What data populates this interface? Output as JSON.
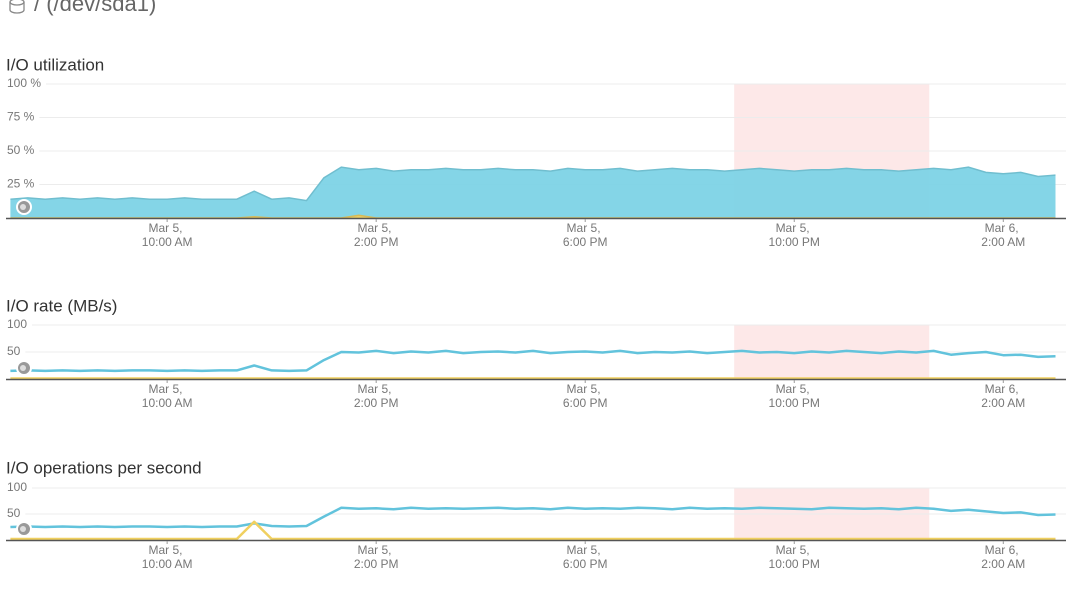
{
  "header": "/ (/dev/sda1)",
  "chart_data": [
    {
      "type": "area",
      "title": "I/O utilization",
      "x": [
        "Mar 5, 7:00 AM",
        "Mar 5, 7:20 AM",
        "Mar 5, 7:40 AM",
        "Mar 5, 8:00 AM",
        "Mar 5, 8:20 AM",
        "Mar 5, 8:40 AM",
        "Mar 5, 9:00 AM",
        "Mar 5, 9:20 AM",
        "Mar 5, 9:40 AM",
        "Mar 5, 10:00 AM",
        "Mar 5, 10:20 AM",
        "Mar 5, 10:40 AM",
        "Mar 5, 11:00 AM",
        "Mar 5, 11:20 AM",
        "Mar 5, 11:40 AM",
        "Mar 5, 12:00 PM",
        "Mar 5, 12:20 PM",
        "Mar 5, 12:40 PM",
        "Mar 5, 1:00 PM",
        "Mar 5, 1:20 PM",
        "Mar 5, 1:40 PM",
        "Mar 5, 2:00 PM",
        "Mar 5, 2:20 PM",
        "Mar 5, 2:40 PM",
        "Mar 5, 3:00 PM",
        "Mar 5, 3:20 PM",
        "Mar 5, 3:40 PM",
        "Mar 5, 4:00 PM",
        "Mar 5, 4:20 PM",
        "Mar 5, 4:40 PM",
        "Mar 5, 5:00 PM",
        "Mar 5, 5:20 PM",
        "Mar 5, 5:40 PM",
        "Mar 5, 6:00 PM",
        "Mar 5, 6:20 PM",
        "Mar 5, 6:40 PM",
        "Mar 5, 7:00 PM",
        "Mar 5, 7:20 PM",
        "Mar 5, 7:40 PM",
        "Mar 5, 8:00 PM",
        "Mar 5, 8:20 PM",
        "Mar 5, 8:40 PM",
        "Mar 5, 9:00 PM",
        "Mar 5, 9:20 PM",
        "Mar 5, 9:40 PM",
        "Mar 5, 10:00 PM",
        "Mar 5, 10:20 PM",
        "Mar 5, 10:40 PM",
        "Mar 5, 11:00 PM",
        "Mar 5, 11:20 PM",
        "Mar 5, 11:40 PM",
        "Mar 6, 12:00 AM",
        "Mar 6, 12:20 AM",
        "Mar 6, 12:40 AM",
        "Mar 6, 1:00 AM",
        "Mar 6, 1:20 AM",
        "Mar 6, 1:40 AM",
        "Mar 6, 2:00 AM",
        "Mar 6, 2:20 AM",
        "Mar 6, 2:40 AM",
        "Mar 6, 3:00 AM"
      ],
      "xlim": [
        "Mar 5, 6:55 AM",
        "Mar 6, 3:12 AM"
      ],
      "xticks": [
        "Mar 5, 10:00 AM",
        "Mar 5, 2:00 PM",
        "Mar 5, 6:00 PM",
        "Mar 5, 10:00 PM",
        "Mar 6, 2:00 AM"
      ],
      "ylim": [
        0,
        100
      ],
      "yticks": [
        {
          "value": 25,
          "label": "25 %"
        },
        {
          "value": 50,
          "label": "50 %"
        },
        {
          "value": 75,
          "label": "75 %"
        },
        {
          "value": 100,
          "label": "100 %"
        }
      ],
      "grid": true,
      "highlight": [
        "Mar 5, 8:51 PM",
        "Mar 6, 12:35 AM"
      ],
      "series": [
        {
          "color": "#7dd3e6",
          "values": [
            14,
            15,
            14,
            15,
            14,
            15,
            14,
            15,
            14,
            14,
            15,
            14,
            14,
            14,
            20,
            14,
            15,
            13,
            30,
            38,
            36,
            37,
            35,
            36,
            36,
            37,
            36,
            36,
            37,
            36,
            36,
            35,
            37,
            36,
            36,
            37,
            35,
            36,
            37,
            36,
            36,
            35,
            36,
            37,
            36,
            35,
            36,
            36,
            37,
            36,
            36,
            35,
            36,
            37,
            36,
            38,
            34,
            33,
            34,
            31,
            32
          ]
        },
        {
          "color": "#f0d060",
          "values": [
            0,
            0,
            0,
            0,
            0,
            0,
            0,
            0,
            0,
            0,
            0,
            0,
            0,
            0,
            1,
            0,
            0,
            0,
            0,
            0,
            2,
            0,
            0,
            0,
            0,
            0,
            0,
            0,
            0,
            0,
            0,
            0,
            0,
            0,
            0,
            0,
            0,
            0,
            0,
            0,
            0,
            0,
            0,
            0,
            0,
            0,
            0,
            0,
            0,
            0,
            0,
            0,
            0,
            0,
            0,
            0,
            0,
            0,
            0,
            0,
            0
          ]
        }
      ]
    },
    {
      "type": "line",
      "title": "I/O rate (MB/s)",
      "x": [
        "Mar 5, 7:00 AM",
        "Mar 5, 7:20 AM",
        "Mar 5, 7:40 AM",
        "Mar 5, 8:00 AM",
        "Mar 5, 8:20 AM",
        "Mar 5, 8:40 AM",
        "Mar 5, 9:00 AM",
        "Mar 5, 9:20 AM",
        "Mar 5, 9:40 AM",
        "Mar 5, 10:00 AM",
        "Mar 5, 10:20 AM",
        "Mar 5, 10:40 AM",
        "Mar 5, 11:00 AM",
        "Mar 5, 11:20 AM",
        "Mar 5, 11:40 AM",
        "Mar 5, 12:00 PM",
        "Mar 5, 12:20 PM",
        "Mar 5, 12:40 PM",
        "Mar 5, 1:00 PM",
        "Mar 5, 1:20 PM",
        "Mar 5, 1:40 PM",
        "Mar 5, 2:00 PM",
        "Mar 5, 2:20 PM",
        "Mar 5, 2:40 PM",
        "Mar 5, 3:00 PM",
        "Mar 5, 3:20 PM",
        "Mar 5, 3:40 PM",
        "Mar 5, 4:00 PM",
        "Mar 5, 4:20 PM",
        "Mar 5, 4:40 PM",
        "Mar 5, 5:00 PM",
        "Mar 5, 5:20 PM",
        "Mar 5, 5:40 PM",
        "Mar 5, 6:00 PM",
        "Mar 5, 6:20 PM",
        "Mar 5, 6:40 PM",
        "Mar 5, 7:00 PM",
        "Mar 5, 7:20 PM",
        "Mar 5, 7:40 PM",
        "Mar 5, 8:00 PM",
        "Mar 5, 8:20 PM",
        "Mar 5, 8:40 PM",
        "Mar 5, 9:00 PM",
        "Mar 5, 9:20 PM",
        "Mar 5, 9:40 PM",
        "Mar 5, 10:00 PM",
        "Mar 5, 10:20 PM",
        "Mar 5, 10:40 PM",
        "Mar 5, 11:00 PM",
        "Mar 5, 11:20 PM",
        "Mar 5, 11:40 PM",
        "Mar 6, 12:00 AM",
        "Mar 6, 12:20 AM",
        "Mar 6, 12:40 AM",
        "Mar 6, 1:00 AM",
        "Mar 6, 1:20 AM",
        "Mar 6, 1:40 AM",
        "Mar 6, 2:00 AM",
        "Mar 6, 2:20 AM",
        "Mar 6, 2:40 AM",
        "Mar 6, 3:00 AM"
      ],
      "xlim": [
        "Mar 5, 6:55 AM",
        "Mar 6, 3:12 AM"
      ],
      "xticks": [
        "Mar 5, 10:00 AM",
        "Mar 5, 2:00 PM",
        "Mar 5, 6:00 PM",
        "Mar 5, 10:00 PM",
        "Mar 6, 2:00 AM"
      ],
      "ylim": [
        0,
        100
      ],
      "yticks": [
        50,
        100
      ],
      "grid": true,
      "highlight": [
        "Mar 5, 8:51 PM",
        "Mar 6, 12:35 AM"
      ],
      "series": [
        {
          "color": "#62c3dc",
          "values": [
            15,
            16,
            15,
            16,
            15,
            16,
            15,
            16,
            16,
            15,
            16,
            15,
            16,
            16,
            25,
            16,
            15,
            16,
            35,
            50,
            49,
            52,
            48,
            51,
            49,
            52,
            48,
            50,
            51,
            49,
            52,
            48,
            50,
            51,
            49,
            52,
            48,
            50,
            49,
            51,
            48,
            50,
            52,
            49,
            50,
            48,
            51,
            49,
            52,
            50,
            48,
            51,
            49,
            52,
            45,
            48,
            50,
            44,
            45,
            41,
            42
          ]
        },
        {
          "color": "#f0d060",
          "values": [
            1,
            1,
            1,
            1,
            1,
            1,
            1,
            1,
            1,
            1,
            1,
            1,
            1,
            1,
            1,
            1,
            1,
            1,
            1,
            1,
            1,
            1,
            1,
            1,
            1,
            1,
            1,
            1,
            1,
            1,
            1,
            1,
            1,
            1,
            1,
            1,
            1,
            1,
            1,
            1,
            1,
            1,
            1,
            1,
            1,
            1,
            1,
            1,
            1,
            1,
            1,
            1,
            1,
            1,
            1,
            1,
            1,
            1,
            1,
            1,
            1
          ]
        }
      ]
    },
    {
      "type": "line",
      "title": "I/O operations per second",
      "x": [
        "Mar 5, 7:00 AM",
        "Mar 5, 7:20 AM",
        "Mar 5, 7:40 AM",
        "Mar 5, 8:00 AM",
        "Mar 5, 8:20 AM",
        "Mar 5, 8:40 AM",
        "Mar 5, 9:00 AM",
        "Mar 5, 9:20 AM",
        "Mar 5, 9:40 AM",
        "Mar 5, 10:00 AM",
        "Mar 5, 10:20 AM",
        "Mar 5, 10:40 AM",
        "Mar 5, 11:00 AM",
        "Mar 5, 11:20 AM",
        "Mar 5, 11:40 AM",
        "Mar 5, 12:00 PM",
        "Mar 5, 12:20 PM",
        "Mar 5, 12:40 PM",
        "Mar 5, 1:00 PM",
        "Mar 5, 1:20 PM",
        "Mar 5, 1:40 PM",
        "Mar 5, 2:00 PM",
        "Mar 5, 2:20 PM",
        "Mar 5, 2:40 PM",
        "Mar 5, 3:00 PM",
        "Mar 5, 3:20 PM",
        "Mar 5, 3:40 PM",
        "Mar 5, 4:00 PM",
        "Mar 5, 4:20 PM",
        "Mar 5, 4:40 PM",
        "Mar 5, 5:00 PM",
        "Mar 5, 5:20 PM",
        "Mar 5, 5:40 PM",
        "Mar 5, 6:00 PM",
        "Mar 5, 6:20 PM",
        "Mar 5, 6:40 PM",
        "Mar 5, 7:00 PM",
        "Mar 5, 7:20 PM",
        "Mar 5, 7:40 PM",
        "Mar 5, 8:00 PM",
        "Mar 5, 8:20 PM",
        "Mar 5, 8:40 PM",
        "Mar 5, 9:00 PM",
        "Mar 5, 9:20 PM",
        "Mar 5, 9:40 PM",
        "Mar 5, 10:00 PM",
        "Mar 5, 10:20 PM",
        "Mar 5, 10:40 PM",
        "Mar 5, 11:00 PM",
        "Mar 5, 11:20 PM",
        "Mar 5, 11:40 PM",
        "Mar 6, 12:00 AM",
        "Mar 6, 12:20 AM",
        "Mar 6, 12:40 AM",
        "Mar 6, 1:00 AM",
        "Mar 6, 1:20 AM",
        "Mar 6, 1:40 AM",
        "Mar 6, 2:00 AM",
        "Mar 6, 2:20 AM",
        "Mar 6, 2:40 AM",
        "Mar 6, 3:00 AM"
      ],
      "xlim": [
        "Mar 5, 6:55 AM",
        "Mar 6, 3:12 AM"
      ],
      "xticks": [
        "Mar 5, 10:00 AM",
        "Mar 5, 2:00 PM",
        "Mar 5, 6:00 PM",
        "Mar 5, 10:00 PM",
        "Mar 6, 2:00 AM"
      ],
      "ylim": [
        0,
        100
      ],
      "yticks": [
        50,
        100
      ],
      "grid": true,
      "highlight": [
        "Mar 5, 8:51 PM",
        "Mar 6, 12:35 AM"
      ],
      "series": [
        {
          "color": "#62c3dc",
          "values": [
            25,
            26,
            25,
            26,
            25,
            26,
            25,
            26,
            26,
            25,
            26,
            25,
            26,
            26,
            32,
            27,
            26,
            27,
            45,
            62,
            60,
            61,
            59,
            62,
            60,
            61,
            60,
            61,
            62,
            60,
            61,
            59,
            62,
            60,
            61,
            60,
            62,
            61,
            59,
            62,
            60,
            61,
            60,
            62,
            61,
            60,
            59,
            62,
            61,
            60,
            61,
            59,
            62,
            60,
            56,
            58,
            55,
            52,
            53,
            48,
            49
          ]
        },
        {
          "color": "#f0d060",
          "values": [
            2,
            2,
            2,
            2,
            2,
            2,
            2,
            2,
            2,
            2,
            2,
            2,
            2,
            2,
            35,
            2,
            2,
            2,
            2,
            2,
            2,
            2,
            2,
            2,
            2,
            2,
            2,
            2,
            2,
            2,
            2,
            2,
            2,
            2,
            2,
            2,
            2,
            2,
            2,
            2,
            2,
            2,
            2,
            2,
            2,
            2,
            2,
            2,
            2,
            2,
            2,
            2,
            2,
            2,
            2,
            2,
            2,
            2,
            2,
            2,
            2
          ]
        }
      ]
    }
  ]
}
